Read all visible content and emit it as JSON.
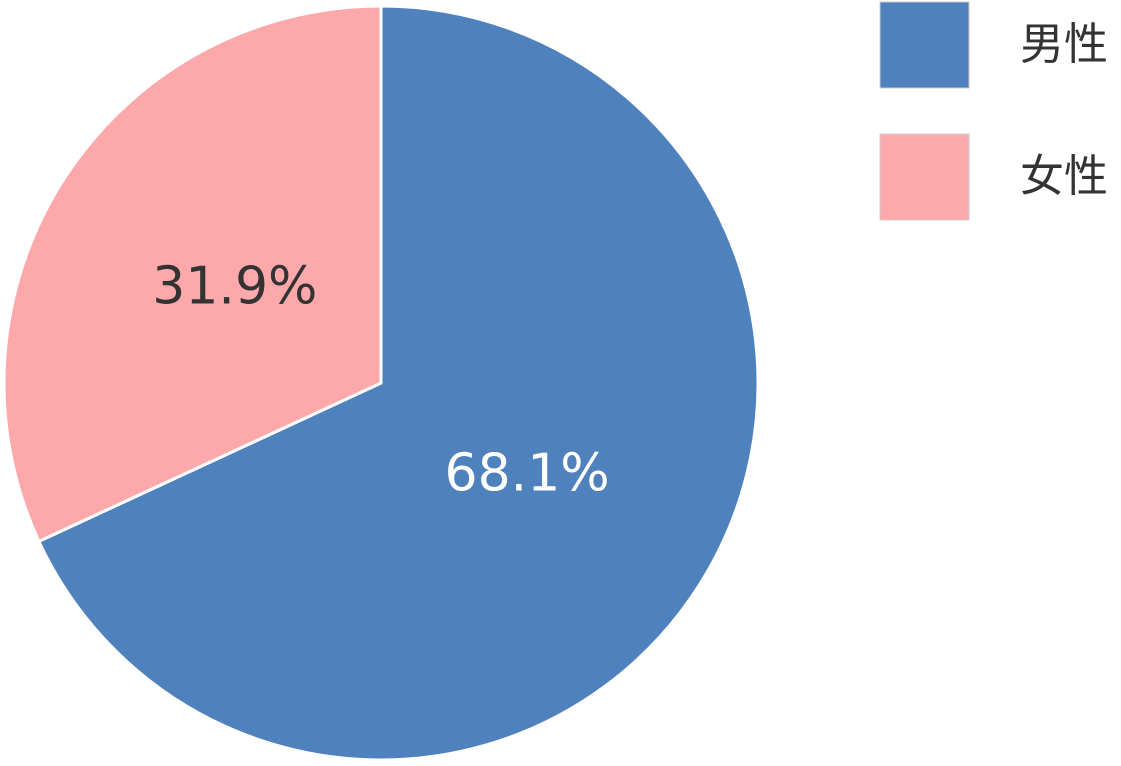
{
  "chart_data": {
    "type": "pie",
    "categories": [
      "男性",
      "女性"
    ],
    "values": [
      68.1,
      31.9
    ],
    "value_labels": [
      "68.1%",
      "31.9%"
    ],
    "colors": [
      "#4f81bd",
      "#fda9ab"
    ],
    "legend": "right"
  }
}
